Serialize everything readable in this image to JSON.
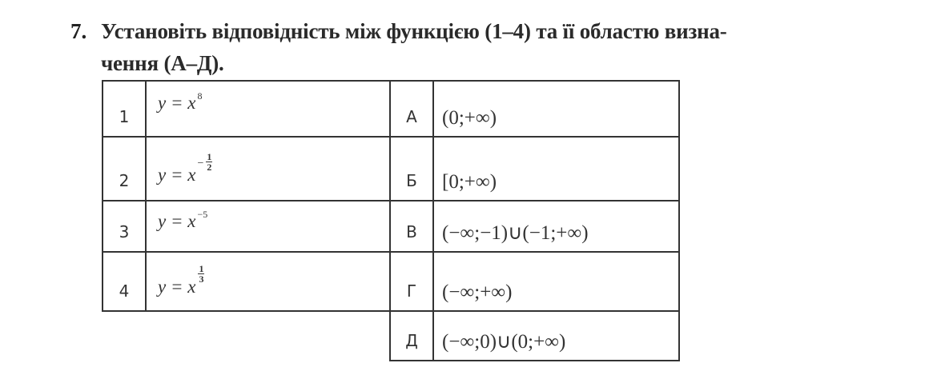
{
  "question": {
    "number": "7.",
    "line1": "Установіть відповідність між функцією (1–4) та її областю визна-",
    "line2": "чення (А–Д)."
  },
  "functions": [
    {
      "label": "1",
      "lhs": "y = x",
      "exponent": "8"
    },
    {
      "label": "2",
      "lhs": "y = x",
      "sign": "−",
      "numerator": "1",
      "denominator": "2"
    },
    {
      "label": "3",
      "lhs": "y = x",
      "exponent": "−5"
    },
    {
      "label": "4",
      "lhs": "y = x",
      "numerator": "1",
      "denominator": "3"
    }
  ],
  "domains": [
    {
      "label": "А",
      "value": "(0;+∞)"
    },
    {
      "label": "Б",
      "value": "[0;+∞)"
    },
    {
      "label": "В",
      "value": "(−∞;−1)∪(−1;+∞)"
    },
    {
      "label": "Г",
      "value": "(−∞;+∞)"
    },
    {
      "label": "Д",
      "value": "(−∞;0)∪(0;+∞)"
    }
  ]
}
